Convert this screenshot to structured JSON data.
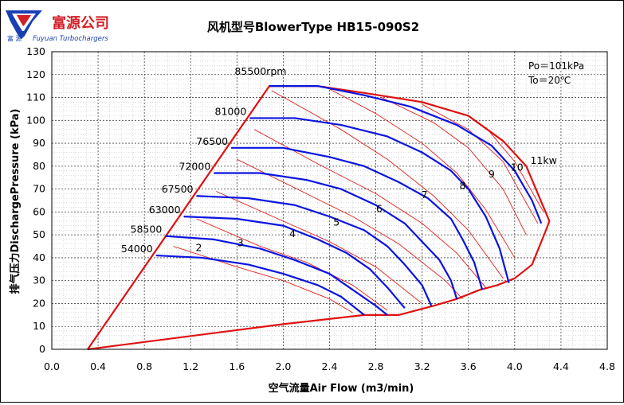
{
  "logo": {
    "company": "富源公司",
    "english": "Fuyuan Turbochargers",
    "small_cn": "富 源"
  },
  "chart_data": {
    "type": "line",
    "title": "风机型号BlowerType HB15-090S2",
    "xlabel": "空气流量Air Flow (m3/min)",
    "ylabel": "排气压力DischargePressure (kPa)",
    "xlim": [
      0,
      4.8
    ],
    "ylim": [
      0,
      130
    ],
    "xticks": [
      "0.0",
      "0.4",
      "0.8",
      "1.2",
      "1.6",
      "2.0",
      "2.4",
      "2.8",
      "3.2",
      "3.6",
      "4.0",
      "4.4",
      "4.8"
    ],
    "yticks": [
      "0",
      "10",
      "20",
      "30",
      "40",
      "50",
      "60",
      "70",
      "80",
      "90",
      "100",
      "110",
      "120",
      "130"
    ],
    "grid": true,
    "conditions": [
      "Po＝101kPa",
      "To＝20℃"
    ],
    "envelope": [
      [
        0.31,
        0
      ],
      [
        2.0,
        11
      ],
      [
        2.7,
        15
      ],
      [
        3.0,
        15
      ],
      [
        3.3,
        19
      ],
      [
        3.5,
        22
      ],
      [
        3.7,
        26
      ],
      [
        3.85,
        28
      ],
      [
        4.0,
        31
      ],
      [
        4.15,
        37
      ],
      [
        4.27,
        52
      ],
      [
        4.3,
        56
      ],
      [
        4.1,
        80
      ],
      [
        3.9,
        91
      ],
      [
        3.6,
        102
      ],
      [
        3.2,
        108
      ],
      [
        2.7,
        112
      ],
      [
        2.3,
        115
      ],
      [
        1.88,
        115
      ],
      [
        0.31,
        0
      ]
    ],
    "speed_lines": [
      {
        "name": "54000",
        "label": "54000",
        "points": [
          [
            0.9,
            41
          ],
          [
            1.3,
            40
          ],
          [
            1.7,
            37
          ],
          [
            2.0,
            33
          ],
          [
            2.3,
            28
          ],
          [
            2.5,
            23
          ],
          [
            2.65,
            17
          ],
          [
            2.7,
            15
          ]
        ]
      },
      {
        "name": "58500",
        "label": "58500",
        "points": [
          [
            0.98,
            49.5
          ],
          [
            1.4,
            48
          ],
          [
            1.8,
            44
          ],
          [
            2.1,
            39
          ],
          [
            2.4,
            33
          ],
          [
            2.6,
            26
          ],
          [
            2.8,
            19
          ],
          [
            2.9,
            15
          ]
        ]
      },
      {
        "name": "63000",
        "label": "63000",
        "points": [
          [
            1.14,
            58
          ],
          [
            1.6,
            57
          ],
          [
            2.0,
            54
          ],
          [
            2.3,
            48
          ],
          [
            2.55,
            42
          ],
          [
            2.75,
            35
          ],
          [
            2.9,
            27
          ],
          [
            3.05,
            18
          ]
        ]
      },
      {
        "name": "67500",
        "label": "67500",
        "points": [
          [
            1.25,
            67
          ],
          [
            1.7,
            66
          ],
          [
            2.1,
            63
          ],
          [
            2.4,
            58
          ],
          [
            2.7,
            52
          ],
          [
            2.9,
            45
          ],
          [
            3.05,
            37
          ],
          [
            3.2,
            28
          ],
          [
            3.28,
            19
          ]
        ]
      },
      {
        "name": "72000",
        "label": "72000",
        "points": [
          [
            1.4,
            77
          ],
          [
            1.8,
            77
          ],
          [
            2.2,
            74
          ],
          [
            2.5,
            70
          ],
          [
            2.8,
            63
          ],
          [
            3.05,
            55
          ],
          [
            3.2,
            47
          ],
          [
            3.35,
            39
          ],
          [
            3.45,
            30
          ],
          [
            3.5,
            22
          ]
        ]
      },
      {
        "name": "76500",
        "label": "76500",
        "points": [
          [
            1.55,
            88
          ],
          [
            2.0,
            88
          ],
          [
            2.4,
            84
          ],
          [
            2.7,
            80
          ],
          [
            3.0,
            73
          ],
          [
            3.25,
            66
          ],
          [
            3.45,
            57
          ],
          [
            3.55,
            48
          ],
          [
            3.65,
            38
          ],
          [
            3.72,
            26
          ]
        ]
      },
      {
        "name": "81000",
        "label": "81000",
        "points": [
          [
            1.71,
            101
          ],
          [
            2.1,
            101
          ],
          [
            2.5,
            98
          ],
          [
            2.9,
            93
          ],
          [
            3.2,
            86
          ],
          [
            3.45,
            78
          ],
          [
            3.6,
            70
          ],
          [
            3.75,
            58
          ],
          [
            3.87,
            44
          ],
          [
            3.95,
            29
          ]
        ]
      },
      {
        "name": "85500",
        "label": "85500rpm",
        "points": [
          [
            1.88,
            115
          ],
          [
            2.3,
            115
          ],
          [
            2.7,
            111
          ],
          [
            3.1,
            106
          ],
          [
            3.5,
            98
          ],
          [
            3.8,
            89
          ],
          [
            4.0,
            78
          ],
          [
            4.15,
            65
          ],
          [
            4.23,
            55
          ]
        ]
      }
    ],
    "power_lines": [
      {
        "name": "2",
        "label": "2",
        "label_at": [
          1.27,
          43
        ]
      },
      {
        "name": "3",
        "label": "3",
        "label_at": [
          1.63,
          45
        ]
      },
      {
        "name": "4",
        "label": "4",
        "label_at": [
          2.08,
          49
        ]
      },
      {
        "name": "5",
        "label": "5",
        "label_at": [
          2.46,
          54
        ]
      },
      {
        "name": "6",
        "label": "6",
        "label_at": [
          2.83,
          60
        ]
      },
      {
        "name": "7",
        "label": "7",
        "label_at": [
          3.22,
          66
        ]
      },
      {
        "name": "8",
        "label": "8",
        "label_at": [
          3.55,
          70
        ]
      },
      {
        "name": "9",
        "label": "9",
        "label_at": [
          3.8,
          75
        ]
      },
      {
        "name": "10",
        "label": "10",
        "label_at": [
          4.02,
          78
        ]
      },
      {
        "name": "11kw",
        "label": "11kw",
        "label_at": [
          4.25,
          81
        ]
      }
    ],
    "colors": {
      "speed": "#0a14e0",
      "power": "#e02020",
      "envelope": "#e01010",
      "grid": "#b8b8b8",
      "axis": "#000000"
    }
  }
}
